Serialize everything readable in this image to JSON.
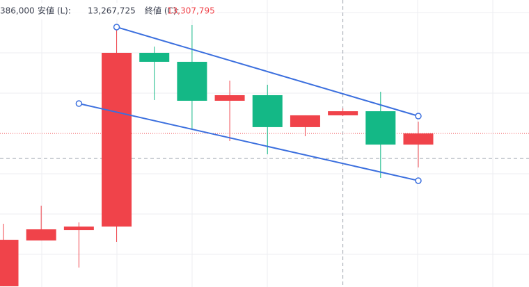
{
  "chart_data": {
    "type": "candlestick",
    "legend": {
      "high_partial": "386,000",
      "low_label": "安値 (L):",
      "low_value": "13,267,725",
      "close_label": "終値 (C):",
      "close_value": "13,307,795"
    },
    "categories": [
      null,
      null,
      null,
      null,
      null,
      null,
      null,
      null,
      null,
      null,
      null,
      null
    ],
    "open": [
      11866000,
      12243000,
      12329000,
      12358000,
      13789000,
      13715000,
      13394000,
      13440000,
      13177000,
      13274000,
      13307795,
      13033000
    ],
    "high": [
      12381000,
      12530000,
      12392000,
      13995000,
      13840000,
      14018000,
      13560000,
      13526000,
      13274000,
      13331000,
      13468000,
      13222000
    ],
    "low": [
      11866000,
      12243000,
      12020000,
      12232000,
      13400000,
      13165000,
      13062000,
      12953000,
      13102000,
      13267725,
      12759000,
      12845000
    ],
    "close": [
      12249000,
      12335000,
      12358000,
      13789000,
      13715000,
      13394000,
      13440000,
      13177000,
      13274000,
      13307795,
      13033000,
      13125000
    ],
    "up_color": "#f0434a",
    "down_color": "#14b886",
    "ylim": [
      11860000,
      14224000
    ],
    "trendlines": [
      {
        "x": [
          3,
          11
        ],
        "y": [
          14001000,
          13268000
        ],
        "color": "#3b6fde"
      },
      {
        "x": [
          2,
          11
        ],
        "y": [
          13371000,
          12736000
        ],
        "color": "#3b6fde"
      }
    ],
    "crosshair": {
      "x": 9,
      "y": 12919000
    },
    "price_line_color": "#f0434a"
  }
}
